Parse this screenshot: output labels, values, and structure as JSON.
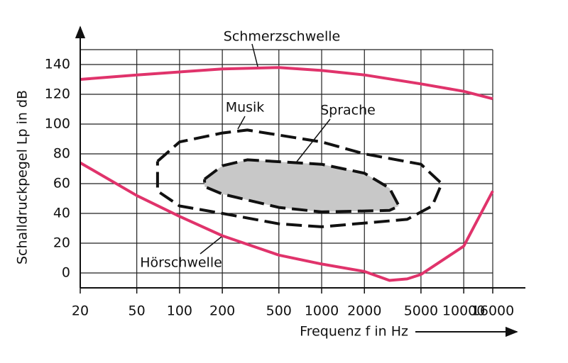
{
  "chart_data": {
    "type": "line",
    "x_label": "Frequenz f in Hz",
    "y_label": "Schalldruckpegel Lp in dB",
    "x_scale": "log",
    "xlim": [
      20,
      16000
    ],
    "ylim": [
      -10,
      150
    ],
    "xticks": [
      20,
      50,
      100,
      200,
      500,
      1000,
      2000,
      5000,
      10000,
      16000
    ],
    "yticks": [
      0,
      20,
      40,
      60,
      80,
      100,
      120,
      140
    ],
    "grid": true,
    "series": [
      {
        "name": "Schmerzschwelle",
        "kind": "line",
        "color": "#e0336b",
        "x": [
          20,
          50,
          100,
          200,
          500,
          1000,
          2000,
          5000,
          10000,
          16000
        ],
        "values": [
          130,
          133,
          135,
          137,
          138,
          136,
          133,
          127,
          122,
          117
        ]
      },
      {
        "name": "Hörschwelle",
        "kind": "line",
        "color": "#e0336b",
        "x": [
          20,
          50,
          100,
          200,
          500,
          1000,
          2000,
          3000,
          4000,
          5000,
          10000,
          16000
        ],
        "values": [
          74,
          52,
          38,
          25,
          12,
          6,
          1,
          -5,
          -4,
          -1,
          18,
          55
        ]
      },
      {
        "name": "Musik",
        "kind": "region",
        "color": "#111111",
        "fill": "none",
        "x": [
          70,
          100,
          200,
          300,
          1000,
          2000,
          5000,
          7000,
          6000,
          4000,
          1000,
          500,
          200,
          100,
          70,
          70
        ],
        "values": [
          75,
          88,
          94,
          96,
          88,
          80,
          73,
          60,
          45,
          36,
          31,
          33,
          40,
          45,
          55,
          75
        ]
      },
      {
        "name": "Sprache",
        "kind": "region",
        "color": "#111111",
        "fill": "#c8c8c8",
        "x": [
          150,
          200,
          300,
          1000,
          2000,
          3000,
          3500,
          3000,
          1000,
          500,
          200,
          150,
          150
        ],
        "values": [
          63,
          72,
          76,
          73,
          67,
          57,
          45,
          42,
          41,
          44,
          53,
          58,
          63
        ]
      }
    ]
  }
}
